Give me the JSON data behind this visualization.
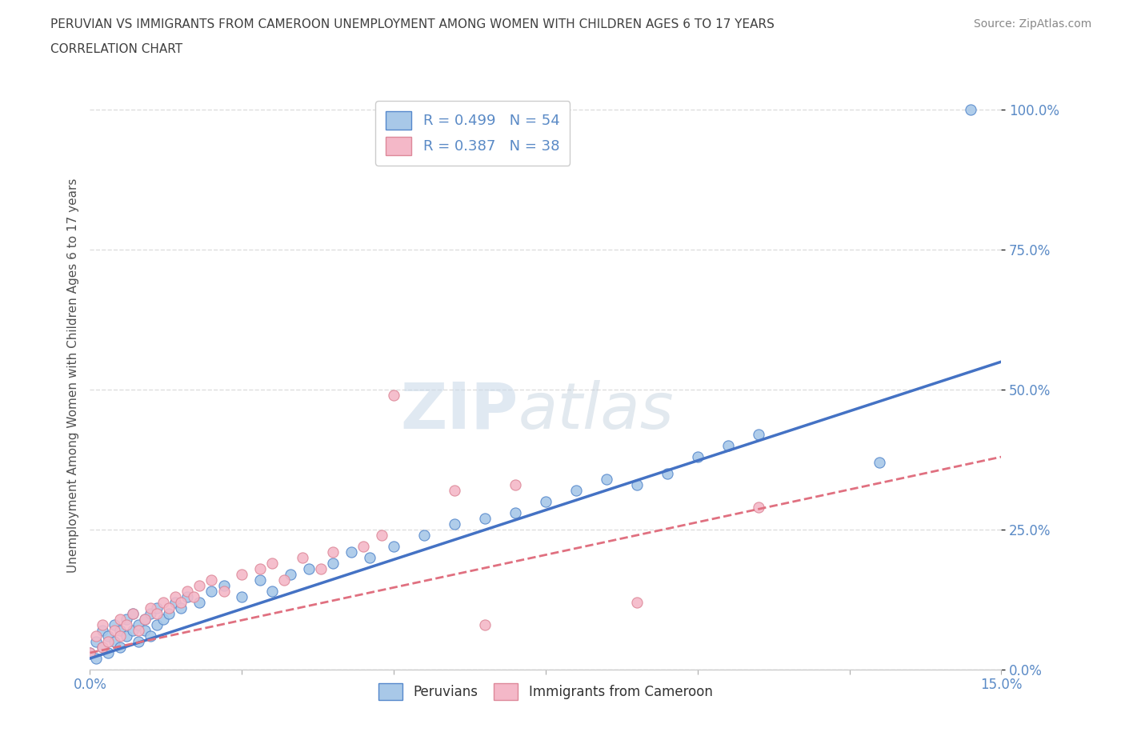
{
  "title_line1": "PERUVIAN VS IMMIGRANTS FROM CAMEROON UNEMPLOYMENT AMONG WOMEN WITH CHILDREN AGES 6 TO 17 YEARS",
  "title_line2": "CORRELATION CHART",
  "source_text": "Source: ZipAtlas.com",
  "ylabel": "Unemployment Among Women with Children Ages 6 to 17 years",
  "xlim": [
    0.0,
    0.15
  ],
  "ylim": [
    0.0,
    1.05
  ],
  "ytick_labels": [
    "0.0%",
    "25.0%",
    "50.0%",
    "75.0%",
    "100.0%"
  ],
  "ytick_values": [
    0.0,
    0.25,
    0.5,
    0.75,
    1.0
  ],
  "blue_R": 0.499,
  "blue_N": 54,
  "pink_R": 0.387,
  "pink_N": 38,
  "blue_color": "#a8c8e8",
  "pink_color": "#f4b8c8",
  "blue_edge_color": "#5588cc",
  "pink_edge_color": "#dd8899",
  "blue_line_color": "#4472C4",
  "pink_line_color": "#e07080",
  "legend_label_blue": "Peruvians",
  "legend_label_pink": "Immigrants from Cameroon",
  "blue_scatter_x": [
    0.0,
    0.001,
    0.001,
    0.002,
    0.002,
    0.003,
    0.003,
    0.004,
    0.004,
    0.005,
    0.005,
    0.006,
    0.006,
    0.007,
    0.007,
    0.008,
    0.008,
    0.009,
    0.009,
    0.01,
    0.01,
    0.011,
    0.011,
    0.012,
    0.013,
    0.014,
    0.015,
    0.016,
    0.018,
    0.02,
    0.022,
    0.025,
    0.028,
    0.03,
    0.033,
    0.036,
    0.04,
    0.043,
    0.046,
    0.05,
    0.055,
    0.06,
    0.065,
    0.07,
    0.075,
    0.08,
    0.085,
    0.09,
    0.095,
    0.1,
    0.105,
    0.11,
    0.13,
    0.145
  ],
  "blue_scatter_y": [
    0.03,
    0.05,
    0.02,
    0.07,
    0.04,
    0.06,
    0.03,
    0.08,
    0.05,
    0.07,
    0.04,
    0.09,
    0.06,
    0.1,
    0.07,
    0.08,
    0.05,
    0.07,
    0.09,
    0.06,
    0.1,
    0.08,
    0.11,
    0.09,
    0.1,
    0.12,
    0.11,
    0.13,
    0.12,
    0.14,
    0.15,
    0.13,
    0.16,
    0.14,
    0.17,
    0.18,
    0.19,
    0.21,
    0.2,
    0.22,
    0.24,
    0.26,
    0.27,
    0.28,
    0.3,
    0.32,
    0.34,
    0.33,
    0.35,
    0.38,
    0.4,
    0.42,
    0.37,
    1.0
  ],
  "pink_scatter_x": [
    0.0,
    0.001,
    0.002,
    0.002,
    0.003,
    0.004,
    0.005,
    0.005,
    0.006,
    0.007,
    0.008,
    0.009,
    0.01,
    0.011,
    0.012,
    0.013,
    0.014,
    0.015,
    0.016,
    0.017,
    0.018,
    0.02,
    0.022,
    0.025,
    0.028,
    0.03,
    0.032,
    0.035,
    0.038,
    0.04,
    0.045,
    0.048,
    0.05,
    0.06,
    0.065,
    0.07,
    0.09,
    0.11
  ],
  "pink_scatter_y": [
    0.03,
    0.06,
    0.04,
    0.08,
    0.05,
    0.07,
    0.06,
    0.09,
    0.08,
    0.1,
    0.07,
    0.09,
    0.11,
    0.1,
    0.12,
    0.11,
    0.13,
    0.12,
    0.14,
    0.13,
    0.15,
    0.16,
    0.14,
    0.17,
    0.18,
    0.19,
    0.16,
    0.2,
    0.18,
    0.21,
    0.22,
    0.24,
    0.49,
    0.32,
    0.08,
    0.33,
    0.12,
    0.29
  ],
  "blue_line_y0": 0.02,
  "blue_line_y1": 0.55,
  "pink_line_y0": 0.03,
  "pink_line_y1": 0.38,
  "grid_color": "#dddddd",
  "background_color": "#ffffff",
  "title_color": "#404040",
  "axis_color": "#5a8ac6"
}
